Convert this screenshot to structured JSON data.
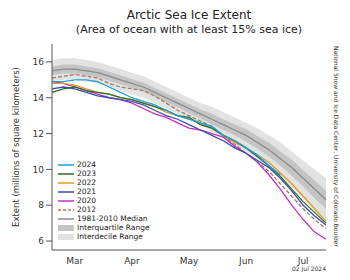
{
  "chart_data": {
    "type": "line",
    "title": "Arctic Sea Ice Extent",
    "subtitle": "(Area of ocean with at least 15% sea ice)",
    "ylabel": "Extent (millions of square kilometers)",
    "annotations": [
      "National Snow and Ice Data Center, University of Colorado Boulder",
      "02 Jul 2024"
    ],
    "categories": [
      null,
      null,
      "Mar",
      null,
      null,
      null,
      null,
      "Apr",
      null,
      null,
      null,
      null,
      "May",
      null,
      null,
      null,
      null,
      "Jun",
      null,
      null,
      null,
      null,
      "Jul",
      null,
      null
    ],
    "ylim": [
      5.5,
      17
    ],
    "yticks": [
      6,
      8,
      10,
      12,
      14,
      16
    ],
    "grid": false,
    "legend": "lower left",
    "series": [
      {
        "name": "2024",
        "color": "#1a9fdb",
        "line_style": "solid",
        "values": [
          14.9,
          14.9,
          15.0,
          15.0,
          14.9,
          14.6,
          14.3,
          14.0,
          13.8,
          13.6,
          13.3,
          13.0,
          12.8,
          12.6,
          12.4,
          11.9,
          11.6,
          11.2,
          10.8,
          10.2,
          9.7,
          null,
          null,
          null,
          null
        ]
      },
      {
        "name": "2023",
        "color": "#2e6b2e",
        "line_style": "solid",
        "values": [
          14.3,
          14.5,
          14.6,
          14.4,
          14.3,
          14.2,
          14.0,
          13.9,
          13.7,
          13.5,
          13.3,
          13.0,
          12.9,
          12.5,
          12.3,
          11.9,
          11.6,
          11.2,
          10.7,
          10.2,
          9.6,
          8.9,
          8.2,
          7.6,
          7.0
        ]
      },
      {
        "name": "2022",
        "color": "#e69a1a",
        "line_style": "solid",
        "values": [
          14.8,
          14.8,
          14.7,
          14.5,
          14.3,
          14.2,
          14.0,
          13.9,
          13.7,
          13.5,
          13.2,
          13.0,
          12.8,
          12.6,
          12.3,
          11.9,
          11.5,
          11.2,
          10.8,
          10.4,
          9.8,
          9.2,
          8.5,
          7.8,
          7.1
        ]
      },
      {
        "name": "2021",
        "color": "#3b4bb0",
        "line_style": "solid",
        "values": [
          14.5,
          14.6,
          14.5,
          14.3,
          14.1,
          14.0,
          13.9,
          13.8,
          13.6,
          13.3,
          13.0,
          12.8,
          12.5,
          12.2,
          11.9,
          11.6,
          11.2,
          10.9,
          10.5,
          10.1,
          9.5,
          8.8,
          8.0,
          7.4,
          6.9
        ]
      },
      {
        "name": "2020",
        "color": "#c62fc6",
        "line_style": "solid",
        "values": [
          14.9,
          14.8,
          14.6,
          14.4,
          14.2,
          14.0,
          13.9,
          13.7,
          13.4,
          13.1,
          12.9,
          12.6,
          12.3,
          12.2,
          12.0,
          11.8,
          11.3,
          10.9,
          10.4,
          9.7,
          8.9,
          8.0,
          7.2,
          6.5,
          6.1
        ]
      },
      {
        "name": "2012",
        "color": "#a07a6a",
        "line_style": "dashed",
        "values": [
          15.1,
          15.2,
          15.3,
          15.2,
          15.1,
          14.8,
          14.6,
          14.5,
          14.4,
          14.1,
          13.7,
          13.3,
          13.0,
          12.7,
          12.4,
          11.9,
          11.4,
          10.9,
          10.4,
          9.9,
          9.2,
          8.5,
          7.8,
          7.2,
          6.7
        ]
      },
      {
        "name": "1981-2010 Median",
        "color": "#8a8a8a",
        "line_style": "solid",
        "values": [
          15.5,
          15.6,
          15.6,
          15.5,
          15.4,
          15.2,
          15.0,
          14.8,
          14.6,
          14.3,
          14.0,
          13.7,
          13.4,
          13.1,
          12.8,
          12.5,
          12.2,
          11.9,
          11.5,
          11.1,
          10.6,
          10.1,
          9.5,
          8.9,
          8.3
        ]
      },
      {
        "name": "Interquartile Range",
        "type": "band",
        "color": "#c4c4c4",
        "lower": [
          15.25,
          15.35,
          15.35,
          15.25,
          15.15,
          14.95,
          14.75,
          14.55,
          14.35,
          14.05,
          13.75,
          13.45,
          13.15,
          12.85,
          12.5,
          12.2,
          11.9,
          11.55,
          11.15,
          10.7,
          10.2,
          9.65,
          9.05,
          8.4,
          7.8
        ],
        "upper": [
          15.75,
          15.85,
          15.85,
          15.75,
          15.65,
          15.45,
          15.25,
          15.05,
          14.85,
          14.55,
          14.25,
          13.95,
          13.65,
          13.35,
          13.1,
          12.8,
          12.5,
          12.25,
          11.85,
          11.5,
          11.0,
          10.55,
          9.95,
          9.4,
          8.8
        ]
      },
      {
        "name": "Interdecile Range",
        "type": "band",
        "color": "#e2e2e2",
        "lower": [
          14.9,
          15.0,
          15.0,
          14.9,
          14.8,
          14.6,
          14.4,
          14.2,
          14.0,
          13.7,
          13.4,
          13.1,
          12.8,
          12.5,
          12.1,
          11.8,
          11.4,
          11.0,
          10.6,
          10.1,
          9.6,
          9.0,
          8.4,
          7.7,
          7.1
        ],
        "upper": [
          16.1,
          16.2,
          16.2,
          16.1,
          16.0,
          15.8,
          15.6,
          15.4,
          15.2,
          14.9,
          14.6,
          14.3,
          14.0,
          13.7,
          13.5,
          13.2,
          12.9,
          12.6,
          12.3,
          11.9,
          11.5,
          11.0,
          10.5,
          10.0,
          9.5
        ]
      }
    ]
  }
}
